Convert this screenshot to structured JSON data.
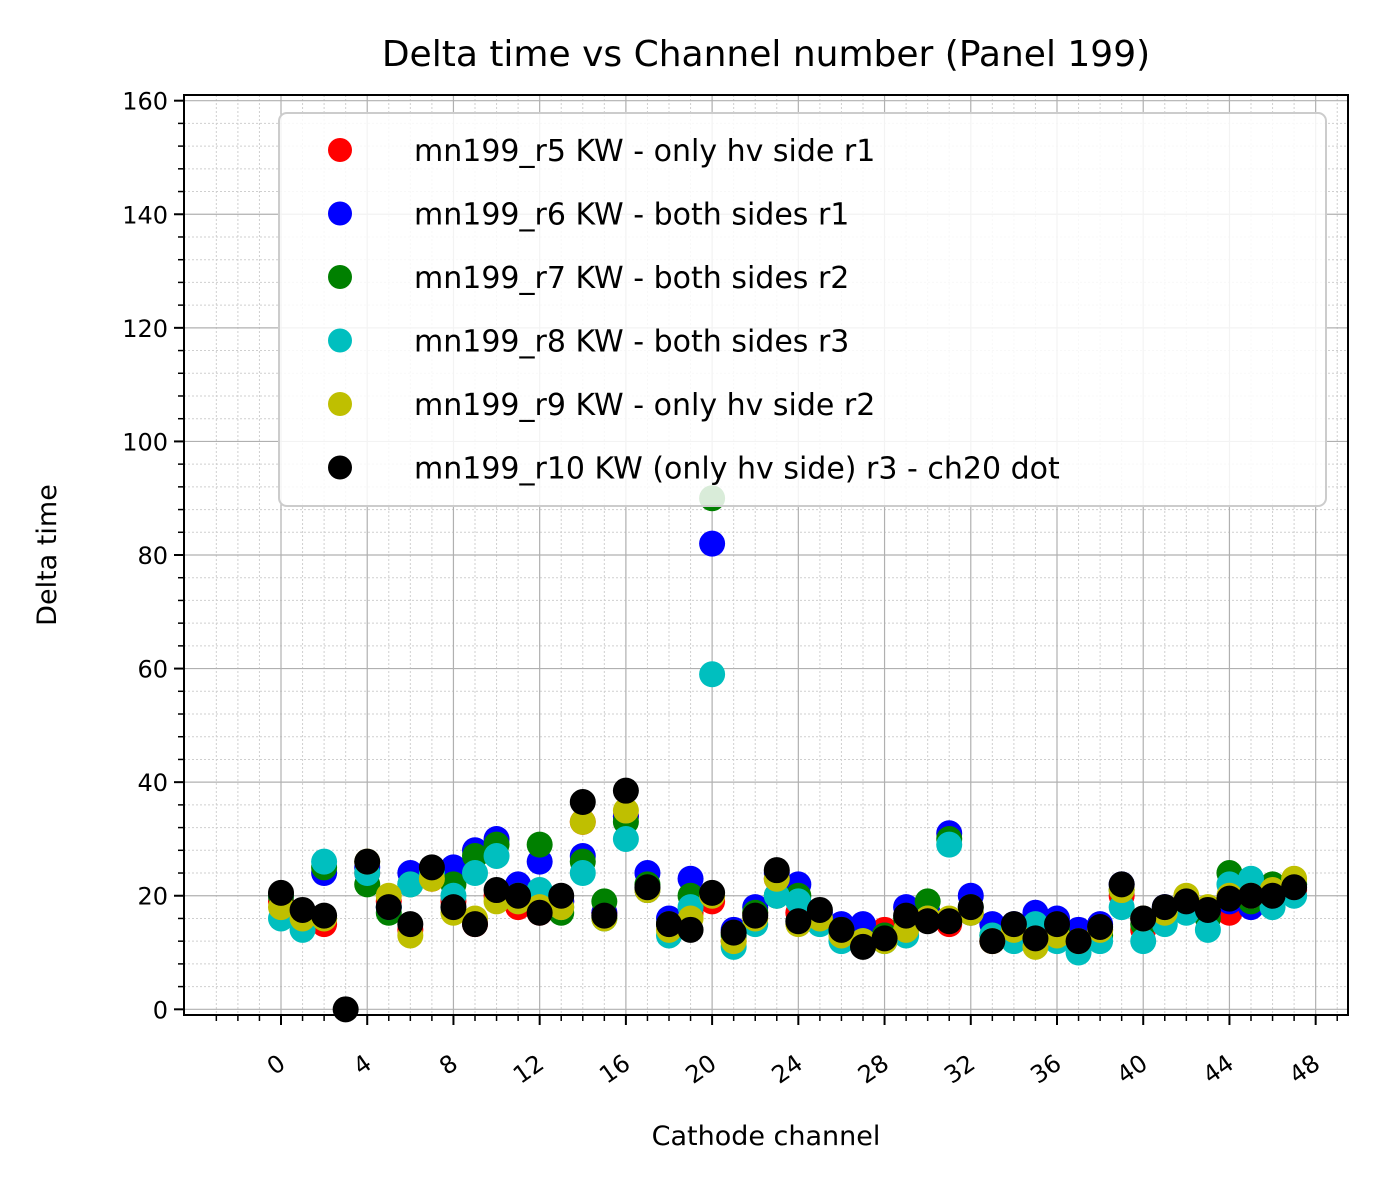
{
  "chart_data": {
    "type": "scatter",
    "title": "Delta time vs Channel number (Panel 199)",
    "xlabel": "Cathode channel",
    "ylabel": "Delta time",
    "xlim": [
      -4.5,
      49.5
    ],
    "ylim": [
      -1,
      161
    ],
    "xticks": [
      "0",
      "4",
      "8",
      "12",
      "16",
      "20",
      "24",
      "28",
      "32",
      "36",
      "40",
      "44",
      "48"
    ],
    "yticks": [
      "0",
      "20",
      "40",
      "60",
      "80",
      "100",
      "120",
      "140",
      "160"
    ],
    "grid": true,
    "legend_position": "upper-right",
    "series": [
      {
        "name": "mn199_r5 KW - only hv side r1",
        "color": "#ff0000",
        "x": [
          0,
          1,
          2,
          3,
          4,
          5,
          6,
          7,
          8,
          9,
          10,
          11,
          12,
          13,
          14,
          15,
          16,
          17,
          18,
          19,
          20,
          21,
          22,
          23,
          24,
          25,
          26,
          27,
          28,
          29,
          30,
          31,
          32,
          33,
          34,
          35,
          36,
          37,
          38,
          39,
          40,
          41,
          42,
          43,
          44,
          45,
          46,
          47
        ],
        "y": [
          19,
          16,
          15,
          null,
          24,
          19,
          14,
          23,
          19,
          15,
          20,
          18,
          17,
          19,
          33,
          17,
          34,
          21,
          15,
          17,
          19,
          12,
          17,
          23,
          17,
          16,
          14,
          13,
          14,
          15,
          16,
          15,
          17,
          12,
          14,
          12,
          14,
          11,
          14,
          20,
          14,
          17,
          19,
          16,
          17,
          19,
          20,
          21
        ]
      },
      {
        "name": "mn199_r6 KW - both sides r1",
        "color": "#0000ff",
        "x": [
          0,
          1,
          2,
          3,
          4,
          5,
          6,
          7,
          8,
          9,
          10,
          11,
          12,
          13,
          14,
          15,
          16,
          17,
          18,
          19,
          20,
          21,
          22,
          23,
          24,
          25,
          26,
          27,
          28,
          29,
          30,
          31,
          32,
          33,
          34,
          35,
          36,
          37,
          38,
          39,
          40,
          41,
          42,
          43,
          44,
          45,
          46,
          47
        ],
        "y": [
          20,
          17,
          24,
          null,
          25,
          18,
          24,
          24,
          25,
          28,
          30,
          22,
          26,
          19,
          27,
          17,
          34,
          24,
          16,
          23,
          82,
          14,
          18,
          24,
          22,
          17,
          15,
          15,
          13,
          18,
          17,
          31,
          20,
          15,
          15,
          17,
          16,
          14,
          15,
          22,
          16,
          18,
          19,
          17,
          19,
          18,
          20,
          22
        ]
      },
      {
        "name": "mn199_r7 KW - both sides r2",
        "color": "#008000",
        "x": [
          0,
          1,
          2,
          3,
          4,
          5,
          6,
          7,
          8,
          9,
          10,
          11,
          12,
          13,
          14,
          15,
          16,
          17,
          18,
          19,
          20,
          21,
          22,
          23,
          24,
          25,
          26,
          27,
          28,
          29,
          30,
          31,
          32,
          33,
          34,
          35,
          36,
          37,
          38,
          39,
          40,
          41,
          42,
          43,
          44,
          45,
          46,
          47
        ],
        "y": [
          20,
          17,
          25,
          null,
          22,
          17,
          22,
          24,
          22,
          27,
          29,
          20,
          29,
          17,
          26,
          19,
          33,
          22,
          15,
          20,
          90,
          13,
          17,
          20,
          20,
          16,
          14,
          12,
          13,
          16,
          19,
          30,
          18,
          13,
          14,
          12,
          14,
          11,
          13,
          21,
          15,
          17,
          19,
          16,
          24,
          19,
          22,
          22
        ]
      },
      {
        "name": "mn199_r8 KW - both sides r3",
        "color": "#00bfbf",
        "x": [
          0,
          1,
          2,
          3,
          4,
          5,
          6,
          7,
          8,
          9,
          10,
          11,
          12,
          13,
          14,
          15,
          16,
          17,
          18,
          19,
          20,
          21,
          22,
          23,
          24,
          25,
          26,
          27,
          28,
          29,
          30,
          31,
          32,
          33,
          34,
          35,
          36,
          37,
          38,
          39,
          40,
          41,
          42,
          43,
          44,
          45,
          46,
          47
        ],
        "y": [
          16,
          14,
          26,
          null,
          24,
          18,
          22,
          24,
          20,
          24,
          27,
          20,
          21,
          18,
          24,
          16,
          30,
          21,
          13,
          18,
          59,
          11,
          15,
          20,
          19,
          15,
          12,
          12,
          12,
          13,
          16,
          29,
          17,
          13,
          12,
          15,
          12,
          10,
          12,
          18,
          12,
          15,
          17,
          14,
          22,
          23,
          18,
          20
        ]
      },
      {
        "name": "mn199_r9 KW - only hv side r2",
        "color": "#bfbf00",
        "x": [
          0,
          1,
          2,
          3,
          4,
          5,
          6,
          7,
          8,
          9,
          10,
          11,
          12,
          13,
          14,
          15,
          16,
          17,
          18,
          19,
          20,
          21,
          22,
          23,
          24,
          25,
          26,
          27,
          28,
          29,
          30,
          31,
          32,
          33,
          34,
          35,
          36,
          37,
          38,
          39,
          40,
          41,
          42,
          43,
          44,
          45,
          46,
          47
        ],
        "y": [
          18,
          16,
          16,
          null,
          26,
          20,
          13,
          23,
          17,
          16,
          19,
          19,
          18,
          18,
          33,
          16,
          35,
          21,
          14,
          16,
          20,
          12,
          16,
          23,
          15,
          16,
          13,
          12,
          12,
          14,
          16,
          16,
          17,
          12,
          14,
          11,
          13,
          12,
          14,
          21,
          16,
          17,
          20,
          18,
          20,
          20,
          21,
          23
        ]
      },
      {
        "name": "mn199_r10 KW (only hv side) r3 - ch20 dot",
        "color": "#000000",
        "x": [
          0,
          1,
          2,
          3,
          4,
          5,
          6,
          7,
          8,
          9,
          10,
          11,
          12,
          13,
          14,
          15,
          16,
          17,
          18,
          19,
          20,
          21,
          22,
          23,
          24,
          25,
          26,
          27,
          28,
          29,
          30,
          31,
          32,
          33,
          34,
          35,
          36,
          37,
          38,
          39,
          40,
          41,
          42,
          43,
          44,
          45,
          46,
          47
        ],
        "y": [
          20.5,
          17.5,
          16.5,
          0,
          26,
          18,
          15,
          25,
          18,
          15,
          21,
          20,
          17,
          20,
          36.5,
          16.5,
          38.5,
          21.5,
          15,
          14,
          20.5,
          13.5,
          16.5,
          24.5,
          15.5,
          17.5,
          14,
          11,
          12.5,
          16.5,
          15.5,
          15.5,
          18,
          12,
          15,
          12.5,
          15,
          12,
          14.5,
          22,
          16,
          18,
          19,
          17.5,
          19.5,
          20,
          20,
          21.5
        ]
      }
    ]
  }
}
